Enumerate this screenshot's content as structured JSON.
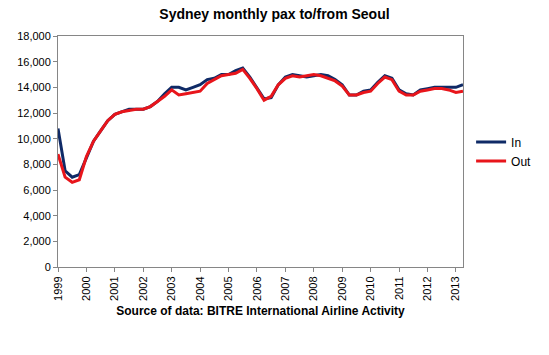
{
  "chart_data": {
    "type": "line",
    "title": "Sydney monthly pax to/from Seoul",
    "x_label": "Source of data: BITRE International Airline Activity",
    "categories": [
      "1999",
      null,
      null,
      null,
      "2000",
      null,
      null,
      null,
      "2001",
      null,
      null,
      null,
      "2002",
      null,
      null,
      null,
      "2003",
      null,
      null,
      null,
      "2004",
      null,
      null,
      null,
      "2005",
      null,
      null,
      null,
      "2006",
      null,
      null,
      null,
      "2007",
      null,
      null,
      null,
      "2008",
      null,
      null,
      null,
      "2009",
      null,
      null,
      null,
      "2010",
      null,
      null,
      null,
      "2011",
      null,
      null,
      null,
      "2012",
      null,
      null,
      null,
      "2013",
      null
    ],
    "series": [
      {
        "name": "In",
        "color": "#0f2a66",
        "values": [
          10800,
          7500,
          7000,
          7200,
          8500,
          9800,
          10600,
          11400,
          11900,
          12100,
          12300,
          12300,
          12300,
          12500,
          12900,
          13500,
          14000,
          14000,
          13800,
          14000,
          14200,
          14600,
          14700,
          15000,
          15000,
          15300,
          15500,
          14800,
          14000,
          13100,
          13200,
          14200,
          14800,
          15000,
          14900,
          14800,
          14900,
          15000,
          14900,
          14600,
          14200,
          13400,
          13400,
          13700,
          13800,
          14400,
          14900,
          14700,
          13800,
          13500,
          13400,
          13800,
          13900,
          14000,
          14000,
          14000,
          14000,
          14200
        ]
      },
      {
        "name": "Out",
        "color": "#e8151b",
        "values": [
          8800,
          7000,
          6600,
          6800,
          8600,
          9800,
          10600,
          11400,
          11900,
          12100,
          12200,
          12300,
          12300,
          12500,
          12900,
          13300,
          13800,
          13400,
          13500,
          13600,
          13700,
          14300,
          14600,
          14900,
          15000,
          15100,
          15400,
          14700,
          13900,
          13000,
          13300,
          14200,
          14700,
          14900,
          14800,
          14900,
          15000,
          14900,
          14700,
          14500,
          14100,
          13400,
          13400,
          13600,
          13700,
          14300,
          14800,
          14600,
          13700,
          13400,
          13400,
          13700,
          13800,
          13900,
          13900,
          13800,
          13600,
          13700
        ]
      }
    ],
    "ylim": [
      0,
      18000
    ],
    "yticks": [
      0,
      {
        "value": 2000,
        "label": "2,000"
      },
      {
        "value": 4000,
        "label": "4,000"
      },
      {
        "value": 6000,
        "label": "6,000"
      },
      {
        "value": 8000,
        "label": "8,000"
      },
      {
        "value": 10000,
        "label": "10,000"
      },
      {
        "value": 12000,
        "label": "12,000"
      },
      {
        "value": 14000,
        "label": "14,000"
      },
      {
        "value": 16000,
        "label": "16,000"
      },
      {
        "value": 18000,
        "label": "18,000"
      }
    ],
    "grid": false,
    "legend": "right"
  }
}
